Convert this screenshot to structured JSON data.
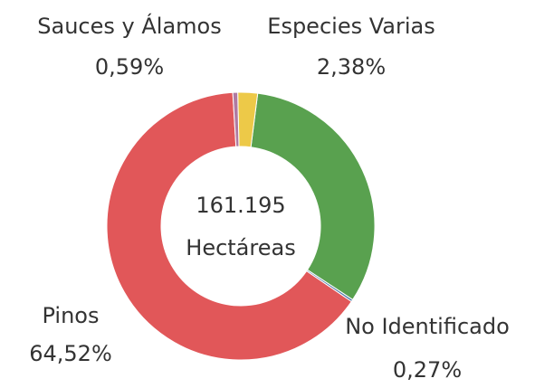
{
  "chart_data": {
    "type": "donut",
    "categories": [
      "Sauces y Álamos",
      "Especies Varias",
      null,
      "No Identificado",
      "Pinos"
    ],
    "values": [
      0.59,
      2.38,
      32.24,
      0.27,
      64.52
    ],
    "value_labels": [
      "0,59%",
      "2,38%",
      null,
      "0,27%",
      "64,52%"
    ],
    "colors": [
      "#b07aa1",
      "#edc948",
      "#59a14f",
      "#4e79a7",
      "#e15759"
    ],
    "center_text": [
      "161.195",
      "Hectáreas"
    ]
  }
}
